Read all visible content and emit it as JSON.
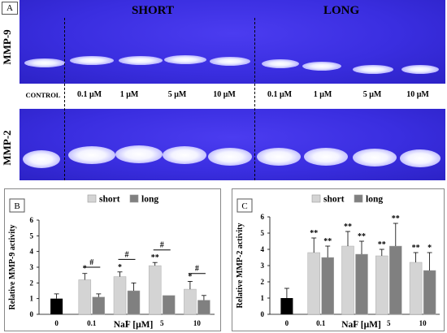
{
  "panel_a": {
    "letter": "A",
    "short_title": "SHORT",
    "long_title": "LONG",
    "gel_labels": [
      "MMP-9",
      "MMP-2"
    ],
    "lanes": [
      "CONTROL",
      "0.1 μM",
      "1 μM",
      "5 μM",
      "10 μM",
      "0.1 μM",
      "1 μM",
      "5 μM",
      "10 μM"
    ],
    "gel_color": "#3a2ee0"
  },
  "chart_data": [
    {
      "type": "bar",
      "letter": "B",
      "ylabel": "Relative MMP-9 activity",
      "xlabel": "NaF [μM]",
      "ylim": [
        0,
        6
      ],
      "yticks": [
        0,
        1,
        2,
        3,
        4,
        5,
        6
      ],
      "legend": [
        "short",
        "long"
      ],
      "legend_position": "top",
      "categories": [
        "0",
        "0.1",
        "1",
        "5",
        "10"
      ],
      "control": {
        "value": 1.0,
        "err": 0.3
      },
      "series": [
        {
          "name": "short",
          "color": "#d4d4d4",
          "values": [
            null,
            2.2,
            2.4,
            3.1,
            1.6
          ],
          "errors": [
            null,
            0.4,
            0.3,
            0.2,
            0.5
          ],
          "marks": [
            "",
            "*",
            "*",
            "**",
            "*"
          ]
        },
        {
          "name": "long",
          "color": "#808080",
          "values": [
            null,
            1.1,
            1.5,
            1.2,
            0.9
          ],
          "errors": [
            null,
            0.2,
            0.5,
            0.0,
            0.3
          ],
          "marks": [
            "",
            "",
            "",
            "",
            ""
          ]
        }
      ],
      "brackets": [
        {
          "category": 1,
          "label": "#",
          "level": 3.0
        },
        {
          "category": 2,
          "label": "#",
          "level": 3.5
        },
        {
          "category": 3,
          "label": "#",
          "level": 4.1
        },
        {
          "category": 4,
          "label": "#",
          "level": 2.6
        }
      ],
      "colors": {
        "control": "#000000",
        "short": "#d4d4d4",
        "long": "#808080"
      }
    },
    {
      "type": "bar",
      "letter": "C",
      "ylabel": "Relative MMP-2 activity",
      "xlabel": "NaF [μM]",
      "ylim": [
        0,
        6
      ],
      "yticks": [
        0,
        1,
        2,
        3,
        4,
        5,
        6
      ],
      "legend": [
        "short",
        "long"
      ],
      "legend_position": "top",
      "categories": [
        "0",
        "0.1",
        "1",
        "5",
        "10"
      ],
      "control": {
        "value": 1.0,
        "err": 0.6
      },
      "series": [
        {
          "name": "short",
          "color": "#d4d4d4",
          "values": [
            null,
            3.8,
            4.2,
            3.6,
            3.2
          ],
          "errors": [
            null,
            0.9,
            0.9,
            0.4,
            0.6
          ],
          "marks": [
            "",
            "**",
            "**",
            "**",
            "**"
          ]
        },
        {
          "name": "long",
          "color": "#808080",
          "values": [
            null,
            3.5,
            3.7,
            4.2,
            2.7
          ],
          "errors": [
            null,
            0.7,
            0.8,
            1.4,
            1.1
          ],
          "marks": [
            "",
            "**",
            "**",
            "**",
            "*"
          ]
        }
      ],
      "brackets": [],
      "colors": {
        "control": "#000000",
        "short": "#d4d4d4",
        "long": "#808080"
      }
    }
  ]
}
